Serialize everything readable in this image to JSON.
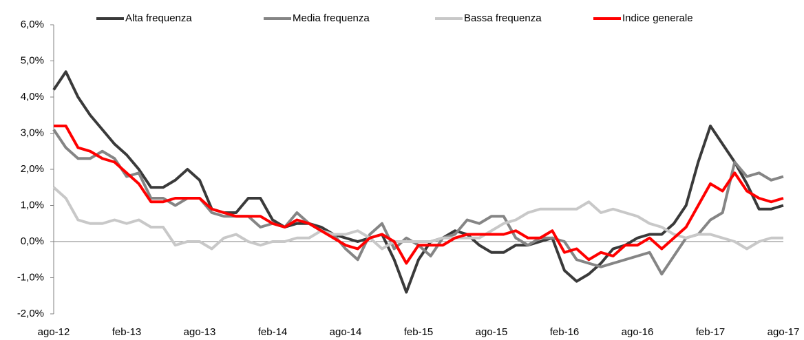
{
  "chart_data": {
    "type": "line",
    "categories": [
      "ago-12",
      null,
      null,
      null,
      null,
      null,
      "feb-13",
      null,
      null,
      null,
      null,
      null,
      "ago-13",
      null,
      null,
      null,
      null,
      null,
      "feb-14",
      null,
      null,
      null,
      null,
      null,
      "ago-14",
      null,
      null,
      null,
      null,
      null,
      "feb-15",
      null,
      null,
      null,
      null,
      null,
      "ago-15",
      null,
      null,
      null,
      null,
      null,
      "feb-16",
      null,
      null,
      null,
      null,
      null,
      "ago-16",
      null,
      null,
      null,
      null,
      null,
      "feb-17",
      null,
      null,
      null,
      null,
      null,
      "ago-17"
    ],
    "series": [
      {
        "name": "Alta frequenza",
        "color": "#3a3a3a",
        "values": [
          4.2,
          4.7,
          4.0,
          3.5,
          3.1,
          2.7,
          2.4,
          2.0,
          1.5,
          1.5,
          1.7,
          2.0,
          1.7,
          0.9,
          0.8,
          0.8,
          1.2,
          1.2,
          0.6,
          0.4,
          0.5,
          0.5,
          0.4,
          0.2,
          0.1,
          0.0,
          0.1,
          0.2,
          -0.5,
          -1.4,
          -0.5,
          0.0,
          0.1,
          0.3,
          0.2,
          -0.1,
          -0.3,
          -0.3,
          -0.1,
          -0.1,
          0.0,
          0.1,
          -0.8,
          -1.1,
          -0.9,
          -0.6,
          -0.2,
          -0.1,
          0.1,
          0.2,
          0.2,
          0.5,
          1.0,
          2.2,
          3.2,
          2.7,
          2.2,
          1.6,
          0.9,
          0.9,
          1.0
        ]
      },
      {
        "name": "Media frequenza",
        "color": "#858585",
        "values": [
          3.1,
          2.6,
          2.3,
          2.3,
          2.5,
          2.3,
          1.8,
          1.9,
          1.2,
          1.2,
          1.0,
          1.2,
          1.2,
          0.8,
          0.7,
          0.7,
          0.7,
          0.4,
          0.5,
          0.4,
          0.8,
          0.5,
          0.3,
          0.2,
          -0.2,
          -0.5,
          0.2,
          0.5,
          -0.2,
          0.1,
          -0.1,
          -0.4,
          0.1,
          0.2,
          0.6,
          0.5,
          0.7,
          0.7,
          0.1,
          -0.1,
          0.1,
          0.1,
          0.0,
          -0.5,
          -0.6,
          -0.7,
          -0.6,
          -0.5,
          -0.4,
          -0.3,
          -0.9,
          -0.4,
          0.1,
          0.2,
          0.6,
          0.8,
          2.2,
          1.8,
          1.9,
          1.7,
          1.8
        ]
      },
      {
        "name": "Bassa frequenza",
        "color": "#c8c8c8",
        "values": [
          1.5,
          1.2,
          0.6,
          0.5,
          0.5,
          0.6,
          0.5,
          0.6,
          0.4,
          0.4,
          -0.1,
          0.0,
          0.0,
          -0.2,
          0.1,
          0.2,
          0.0,
          -0.1,
          0.0,
          0.0,
          0.1,
          0.1,
          0.3,
          0.2,
          0.2,
          0.3,
          0.1,
          -0.2,
          0.0,
          0.0,
          0.0,
          0.0,
          0.1,
          0.1,
          0.1,
          0.1,
          0.3,
          0.5,
          0.6,
          0.8,
          0.9,
          0.9,
          0.9,
          0.9,
          1.1,
          0.8,
          0.9,
          0.8,
          0.7,
          0.5,
          0.4,
          0.2,
          0.1,
          0.2,
          0.2,
          0.1,
          0.0,
          -0.2,
          0.0,
          0.1,
          0.1
        ]
      },
      {
        "name": "Indice generale",
        "color": "#ff0000",
        "values": [
          3.2,
          3.2,
          2.6,
          2.5,
          2.3,
          2.2,
          1.9,
          1.6,
          1.1,
          1.1,
          1.2,
          1.2,
          1.2,
          0.9,
          0.8,
          0.7,
          0.7,
          0.7,
          0.5,
          0.4,
          0.6,
          0.5,
          0.3,
          0.1,
          -0.1,
          -0.2,
          0.1,
          0.2,
          0.0,
          -0.6,
          -0.1,
          -0.1,
          -0.1,
          0.1,
          0.2,
          0.2,
          0.2,
          0.2,
          0.3,
          0.1,
          0.1,
          0.3,
          -0.3,
          -0.2,
          -0.5,
          -0.3,
          -0.4,
          -0.1,
          -0.1,
          0.1,
          -0.2,
          0.1,
          0.4,
          1.0,
          1.6,
          1.4,
          1.9,
          1.4,
          1.2,
          1.1,
          1.2
        ]
      }
    ],
    "ylim": [
      -2,
      6
    ],
    "yticks": [
      {
        "value": -2,
        "label": "-2,0%"
      },
      {
        "value": -1,
        "label": "-1,0%"
      },
      {
        "value": 0,
        "label": "0,0%"
      },
      {
        "value": 1,
        "label": "1,0%"
      },
      {
        "value": 2,
        "label": "2,0%"
      },
      {
        "value": 3,
        "label": "3,0%"
      },
      {
        "value": 4,
        "label": "4,0%"
      },
      {
        "value": 5,
        "label": "5,0%"
      },
      {
        "value": 6,
        "label": "6,0%"
      }
    ],
    "legend": "top",
    "grid": false
  }
}
